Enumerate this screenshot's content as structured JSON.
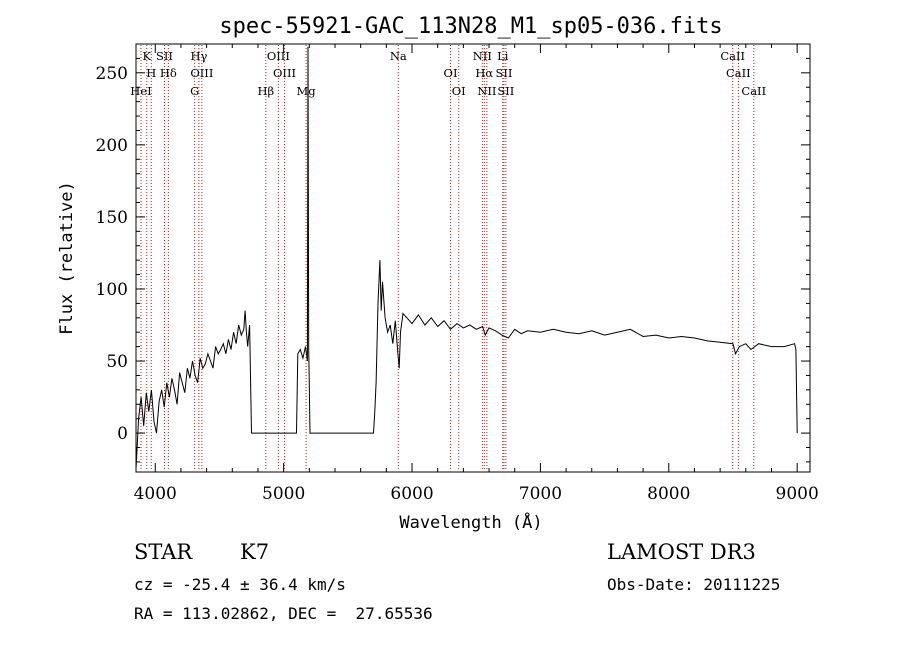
{
  "chart_data": {
    "type": "line",
    "title": "spec-55921-GAC_113N28_M1_sp05-036.fits",
    "xlabel": "Wavelength (Å)",
    "ylabel": "Flux (relative)",
    "xlim": [
      3850,
      9100
    ],
    "ylim": [
      -27,
      270
    ],
    "xticks": [
      4000,
      5000,
      6000,
      7000,
      8000,
      9000
    ],
    "yticks": [
      0,
      50,
      100,
      150,
      200,
      250
    ],
    "grid": false,
    "legend": "none",
    "series_color": "#000000",
    "line_color": "#b22222",
    "series": [
      {
        "x": [
          3850,
          3870,
          3890,
          3910,
          3930,
          3950,
          3970,
          3990,
          4010,
          4030,
          4050,
          4070,
          4090,
          4110,
          4130,
          4150,
          4170,
          4190,
          4210,
          4230,
          4250,
          4270,
          4290,
          4310,
          4330,
          4350,
          4370,
          4390,
          4410,
          4430,
          4450,
          4470,
          4490,
          4510,
          4530,
          4550,
          4570,
          4590,
          4610,
          4630,
          4650,
          4670,
          4690,
          4700,
          4710,
          4720,
          4735,
          4750,
          5100,
          5110,
          5130,
          5150,
          5170,
          5185,
          5190,
          5195,
          5205,
          5215,
          5700,
          5710,
          5720,
          5735,
          5750,
          5760,
          5770,
          5790,
          5810,
          5830,
          5850,
          5870,
          5890,
          5900,
          5910,
          5930,
          5960,
          6000,
          6050,
          6100,
          6150,
          6200,
          6250,
          6300,
          6350,
          6400,
          6450,
          6500,
          6550,
          6570,
          6600,
          6650,
          6700,
          6750,
          6800,
          6850,
          6900,
          7000,
          7100,
          7200,
          7300,
          7400,
          7500,
          7600,
          7700,
          7800,
          7900,
          8000,
          8100,
          8200,
          8300,
          8400,
          8500,
          8520,
          8550,
          8600,
          8640,
          8670,
          8700,
          8800,
          8900,
          8980,
          8990,
          9000
        ],
        "y": [
          -25,
          10,
          25,
          5,
          28,
          15,
          30,
          8,
          0,
          22,
          30,
          18,
          35,
          25,
          38,
          30,
          20,
          42,
          35,
          28,
          45,
          38,
          50,
          40,
          35,
          52,
          45,
          48,
          55,
          50,
          45,
          60,
          55,
          58,
          62,
          55,
          65,
          58,
          70,
          62,
          75,
          68,
          72,
          85,
          70,
          60,
          75,
          0,
          0,
          55,
          58,
          52,
          60,
          50,
          268,
          60,
          0,
          0,
          0,
          15,
          35,
          90,
          120,
          85,
          105,
          80,
          70,
          75,
          62,
          78,
          55,
          45,
          70,
          83,
          80,
          76,
          82,
          75,
          80,
          74,
          78,
          72,
          76,
          73,
          75,
          72,
          74,
          68,
          73,
          71,
          68,
          66,
          72,
          69,
          71,
          70,
          72,
          70,
          69,
          71,
          68,
          70,
          72,
          67,
          68,
          66,
          67,
          66,
          64,
          63,
          62,
          55,
          60,
          62,
          58,
          60,
          62,
          60,
          60,
          62,
          58,
          0
        ]
      }
    ],
    "line_marks": [
      {
        "w": 3934,
        "label": "K"
      },
      {
        "w": 3969,
        "label": "H"
      },
      {
        "w": 3889,
        "label": "HeI"
      },
      {
        "w": 4072,
        "label": "SII"
      },
      {
        "w": 4102,
        "label": "Hδ"
      },
      {
        "w": 4307,
        "label": "G"
      },
      {
        "w": 4340,
        "label": "Hγ"
      },
      {
        "w": 4363,
        "label": "OIII"
      },
      {
        "w": 4861,
        "label": "Hβ"
      },
      {
        "w": 4959,
        "label": "OIII"
      },
      {
        "w": 5007,
        "label": "OIII"
      },
      {
        "w": 5175,
        "label": "Mg"
      },
      {
        "w": 5893,
        "label": "Na"
      },
      {
        "w": 6300,
        "label": "OI"
      },
      {
        "w": 6364,
        "label": "OI"
      },
      {
        "w": 6548,
        "label": "NII"
      },
      {
        "w": 6563,
        "label": "Hα"
      },
      {
        "w": 6583,
        "label": "NII"
      },
      {
        "w": 6707,
        "label": "Li"
      },
      {
        "w": 6716,
        "label": "SII"
      },
      {
        "w": 6731,
        "label": "SII"
      },
      {
        "w": 8498,
        "label": "CaII"
      },
      {
        "w": 8542,
        "label": "CaII"
      },
      {
        "w": 8662,
        "label": "CaII"
      }
    ]
  },
  "info": {
    "object_class": "STAR",
    "subclass": "K7",
    "survey": "LAMOST DR3",
    "cz": "cz = -25.4 ± 36.4 km/s",
    "obs_date": "Obs-Date: 20111225",
    "coords": "RA = 113.02862, DEC =  27.65536"
  }
}
